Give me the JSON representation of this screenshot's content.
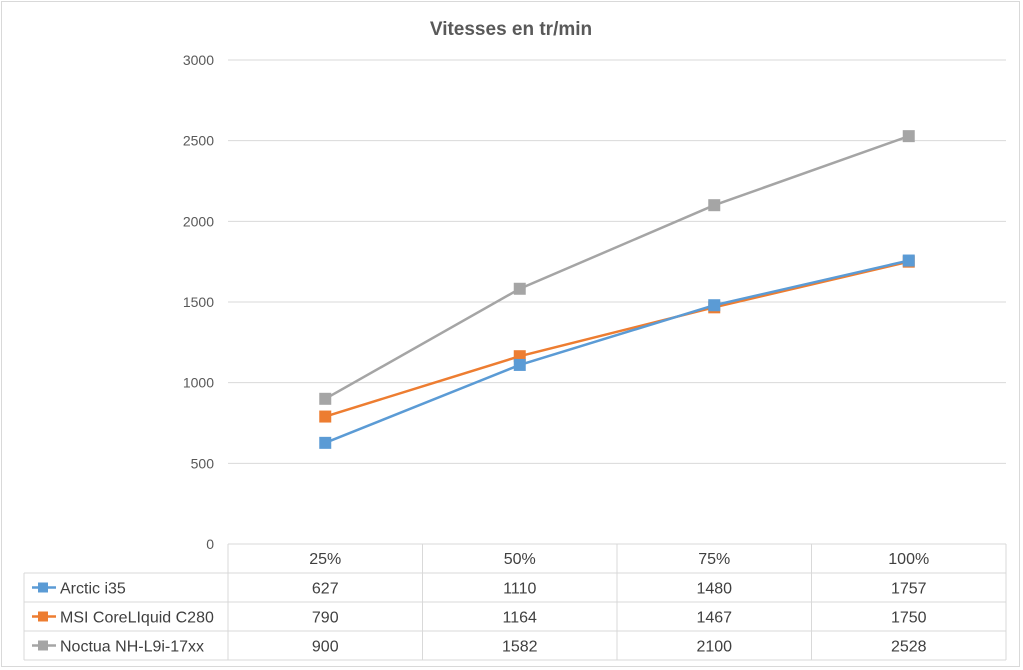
{
  "chart_data": {
    "type": "line",
    "title": "Vitesses en tr/min",
    "categories": [
      "25%",
      "50%",
      "75%",
      "100%"
    ],
    "ylim": [
      0,
      3000
    ],
    "yticks": [
      0,
      500,
      1000,
      1500,
      2000,
      2500,
      3000
    ],
    "grid": true,
    "legend": "data-table",
    "series": [
      {
        "name": "Arctic i35",
        "color": "#5b9bd5",
        "values": [
          627,
          1110,
          1480,
          1757
        ]
      },
      {
        "name": "MSI CoreLIquid C280",
        "color": "#ed7d31",
        "values": [
          790,
          1164,
          1467,
          1750
        ]
      },
      {
        "name": "Noctua NH-L9i-17xx",
        "color": "#a5a5a5",
        "values": [
          900,
          1582,
          2100,
          2528
        ]
      }
    ]
  }
}
